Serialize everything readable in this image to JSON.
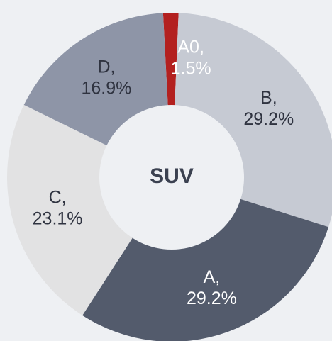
{
  "chart_data": {
    "type": "donut",
    "center_label": "SUV",
    "categories": [
      "A0,",
      "B,",
      "A,",
      "C,",
      "D,"
    ],
    "values": [
      1.5,
      29.2,
      29.2,
      23.1,
      16.9
    ],
    "value_labels": [
      "1.5%",
      "29.2%",
      "29.2%",
      "23.1%",
      "16.9%"
    ],
    "colors": [
      "#b3201f",
      "#c6cad3",
      "#535b6c",
      "#e2e2e3",
      "#8e95a7"
    ],
    "label_colors": [
      "#ffffff",
      "#2f3340",
      "#ffffff",
      "#2f3340",
      "#2f3340"
    ]
  }
}
